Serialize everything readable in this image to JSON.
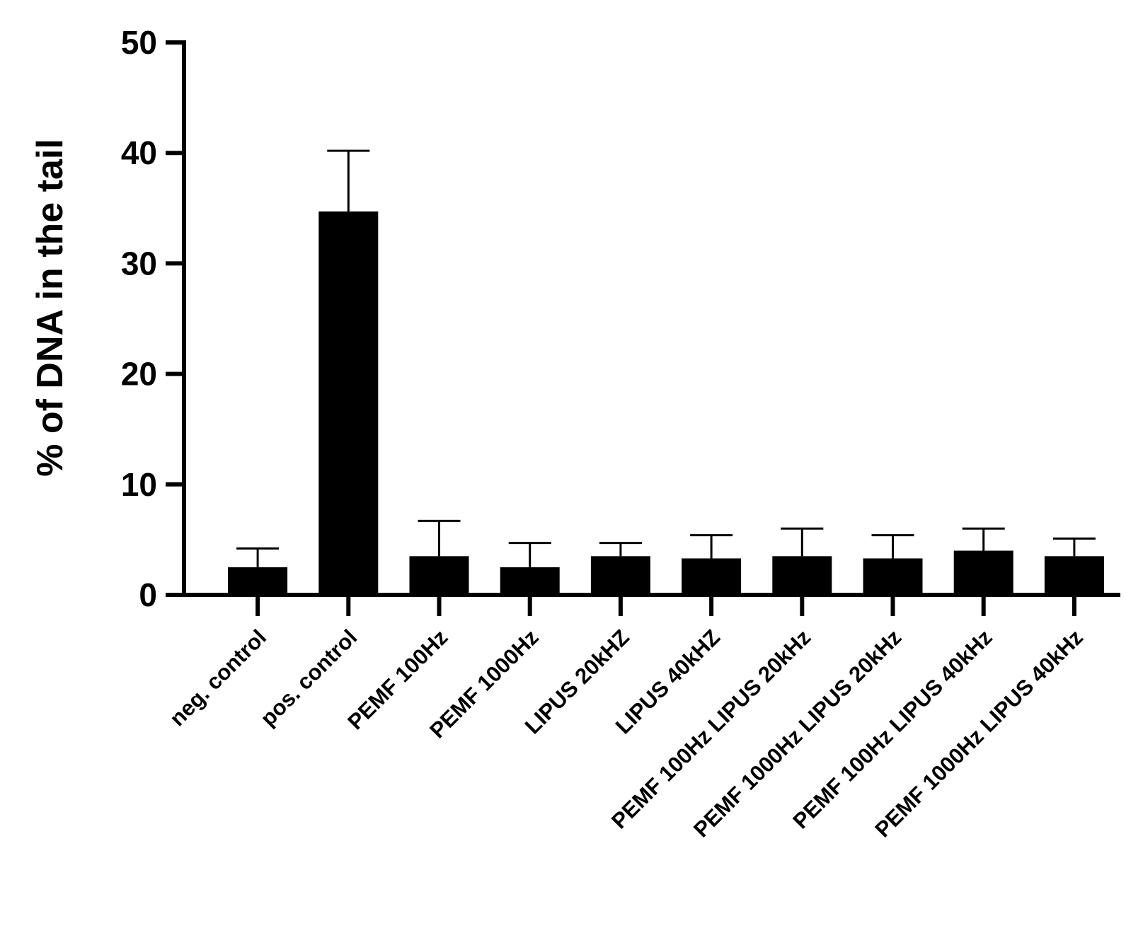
{
  "chart_data": {
    "type": "bar",
    "title": "",
    "xlabel": "",
    "ylabel": "% of DNA in the tail",
    "ylim": [
      0,
      50
    ],
    "yticks": [
      0,
      10,
      20,
      30,
      40,
      50
    ],
    "grid": false,
    "legend": "none",
    "bar_color": "#000000",
    "categories": [
      "neg. control",
      "pos. control",
      "PEMF 100Hz",
      "PEMF 1000Hz",
      "LIPUS 20kHZ",
      "LIPUS 40kHZ",
      "PEMF 100Hz LIPUS 20kHz",
      "PEMF 1000Hz LIPUS 20kHz",
      "PEMF 100Hz LIPUS 40kHz",
      "PEMF 1000Hz LIPUS 40kHz"
    ],
    "values": [
      2.5,
      34.7,
      3.5,
      2.5,
      3.5,
      3.3,
      3.5,
      3.3,
      4.0,
      3.5
    ],
    "error_upper": [
      4.2,
      40.2,
      6.7,
      4.7,
      4.7,
      5.4,
      6.0,
      5.4,
      6.0,
      5.1
    ]
  }
}
